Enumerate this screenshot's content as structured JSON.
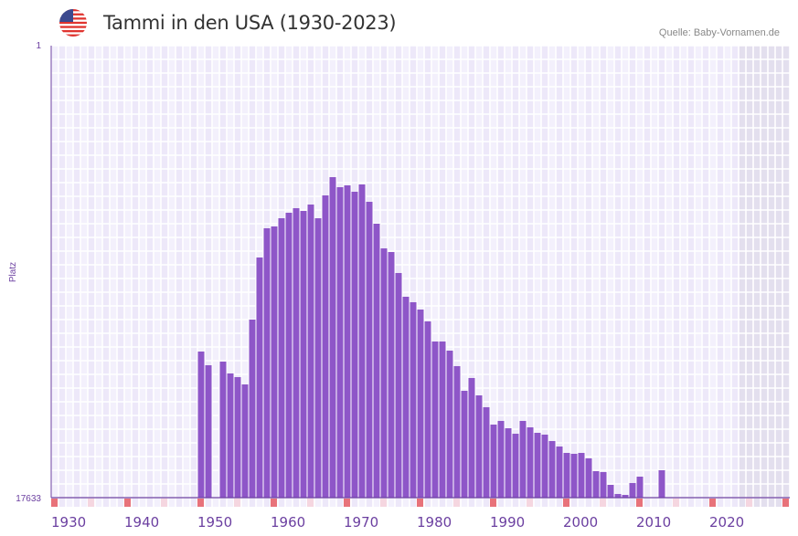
{
  "header": {
    "title": "Tammi in den USA (1930-2023)",
    "source": "Quelle: Baby-Vornamen.de",
    "flag_icon": "us-flag-icon"
  },
  "colors": {
    "bar": "#8e56c8",
    "axis": "#6b3fa0",
    "tick_label": "#6b3fa0",
    "decade_marker": "#e8727a",
    "half_decade_marker": "#f5d6e0",
    "future_shade": "#e3dfee"
  },
  "chart_data": {
    "type": "bar",
    "title": "Tammi in den USA (1930-2023)",
    "xlabel": "",
    "ylabel": "Platz",
    "y_inverted": true,
    "ylim": [
      1,
      17633
    ],
    "y_tick_labels": [
      "1",
      "17633"
    ],
    "x_range": [
      1930,
      2030
    ],
    "x_tick_labels": [
      "1930",
      "1940",
      "1950",
      "1960",
      "1970",
      "1980",
      "1990",
      "2000",
      "2010",
      "2020"
    ],
    "future_from_year": 2024,
    "grid": true,
    "years": [
      1950,
      1951,
      1952,
      1953,
      1954,
      1955,
      1956,
      1957,
      1958,
      1959,
      1960,
      1961,
      1962,
      1963,
      1964,
      1965,
      1966,
      1967,
      1968,
      1969,
      1970,
      1971,
      1972,
      1973,
      1974,
      1975,
      1976,
      1977,
      1978,
      1979,
      1980,
      1981,
      1982,
      1983,
      1984,
      1985,
      1986,
      1987,
      1988,
      1989,
      1990,
      1991,
      1992,
      1993,
      1994,
      1995,
      1996,
      1997,
      1998,
      1999,
      2000,
      2001,
      2002,
      2003,
      2004,
      2005,
      2006,
      2007,
      2008,
      2009,
      2010,
      2011,
      2012,
      2013
    ],
    "ranks": [
      11934,
      12468,
      null,
      12326,
      12788,
      12931,
      13216,
      10687,
      8265,
      7125,
      7054,
      6733,
      6519,
      6341,
      6448,
      6199,
      6733,
      5843,
      5130,
      5522,
      5451,
      5700,
      5415,
      6092,
      6947,
      7909,
      8051,
      8870,
      9796,
      10010,
      10295,
      10758,
      11542,
      11542,
      11898,
      12503,
      13465,
      12966,
      13643,
      14106,
      14783,
      14640,
      14926,
      15140,
      14640,
      14890,
      15104,
      15175,
      15424,
      15638,
      15888,
      15923,
      15888,
      16101,
      16600,
      16636,
      17134,
      17490,
      17526,
      17063,
      16814,
      null,
      null,
      16564
    ]
  }
}
